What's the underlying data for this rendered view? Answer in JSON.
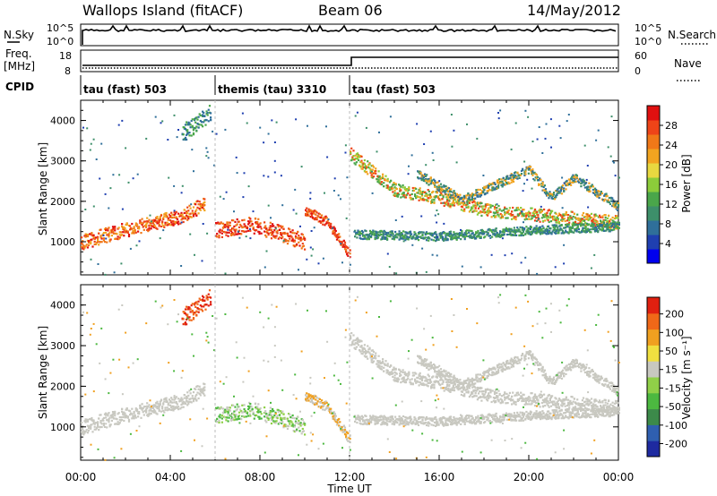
{
  "header": {
    "station": "Wallops Island (fitACF)",
    "beam": "Beam 06",
    "date": "14/May/2012"
  },
  "panels": {
    "nsky_label": "N.Sky",
    "nsearch_label": "N.Search",
    "nsky_ticks": [
      "10^5",
      "10^0"
    ],
    "freq_label_1": "Freq.",
    "freq_label_2": "[MHz]",
    "freq_ticks": [
      "18",
      "8"
    ],
    "nave_label": "Nave",
    "nave_ticks": [
      "60",
      "0"
    ],
    "cpid_label": "CPID",
    "cpid_segments": [
      {
        "label": "tau (fast) 503",
        "start_hour": 0,
        "end_hour": 6
      },
      {
        "label": "themis (tau) 3310",
        "start_hour": 6,
        "end_hour": 12
      },
      {
        "label": "tau (fast) 503",
        "start_hour": 12,
        "end_hour": 24
      }
    ]
  },
  "chart_data": [
    {
      "type": "heatmap",
      "name": "power",
      "xlabel": "",
      "ylabel": "Slant Range [km]",
      "xlim": [
        0,
        24
      ],
      "ylim": [
        180,
        4500
      ],
      "y_ticks": [
        1000,
        2000,
        3000,
        4000
      ],
      "colorbar": {
        "label": "Power [dB]",
        "ticks": [
          "4",
          "8",
          "12",
          "16",
          "20",
          "24",
          "28"
        ],
        "colors": [
          "#0000ee",
          "#1f3fb0",
          "#2f6f9a",
          "#3d8f6a",
          "#4aa64a",
          "#8ccc3a",
          "#e8d840",
          "#f2a420",
          "#f07818",
          "#ee4418",
          "#e01010"
        ]
      }
    },
    {
      "type": "heatmap",
      "name": "velocity",
      "xlabel": "Time UT",
      "ylabel": "Slant Range [km]",
      "x_ticks": [
        "00:00",
        "04:00",
        "08:00",
        "12:00",
        "16:00",
        "20:00",
        "00:00"
      ],
      "xlim": [
        0,
        24
      ],
      "ylim": [
        180,
        4500
      ],
      "y_ticks": [
        1000,
        2000,
        3000,
        4000
      ],
      "colorbar": {
        "label": "Velocity [m s⁻¹]",
        "ticks": [
          "200",
          "100",
          "50",
          "15",
          "-15",
          "-50",
          "-100",
          "-200"
        ],
        "colors": [
          "#1e2aa0",
          "#2f5fb0",
          "#3c8a4a",
          "#4cb840",
          "#90d048",
          "#c8c8c0",
          "#f0e040",
          "#f0a020",
          "#f06818",
          "#e02010"
        ]
      }
    }
  ]
}
